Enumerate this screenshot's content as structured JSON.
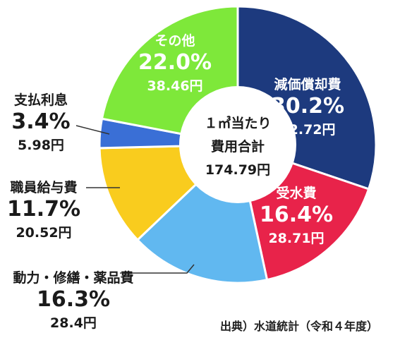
{
  "chart_data": {
    "type": "pie",
    "center_label": {
      "line1": "１㎥当たり",
      "line2": "費用合計",
      "line3": "174.79円"
    },
    "slices": [
      {
        "name": "減価償却費",
        "percent": 30.2,
        "amount": "52.72円",
        "pct_label": "30.2%",
        "color": "#1d3a7e"
      },
      {
        "name": "受水費",
        "percent": 16.4,
        "amount": "28.71円",
        "pct_label": "16.4%",
        "color": "#e8234a"
      },
      {
        "name": "動力・修繕・薬品費",
        "percent": 16.3,
        "amount": "28.4円",
        "pct_label": "16.3%",
        "color": "#61b8f0"
      },
      {
        "name": "職員給与費",
        "percent": 11.7,
        "amount": "20.52円",
        "pct_label": "11.7%",
        "color": "#f9cc1e"
      },
      {
        "name": "支払利息",
        "percent": 3.4,
        "amount": "5.98円",
        "pct_label": "3.4%",
        "color": "#3a6fd6"
      },
      {
        "name": "その他",
        "percent": 22.0,
        "amount": "38.46円",
        "pct_label": "22.0%",
        "color": "#7ee83a"
      }
    ]
  },
  "source": "出典）水道統計（令和４年度）"
}
